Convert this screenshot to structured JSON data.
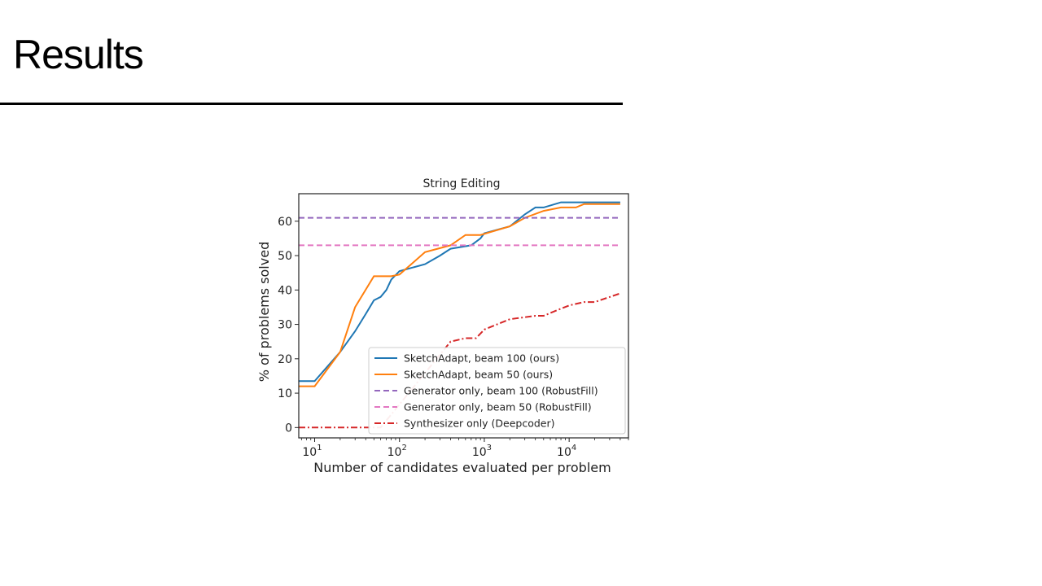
{
  "slide": {
    "title": "Results"
  },
  "chart_data": {
    "type": "line",
    "title": "String Editing",
    "xlabel": "Number of candidates evaluated per problem",
    "ylabel": "% of problems solved",
    "xscale": "log",
    "xlim": [
      6.5,
      50000
    ],
    "ylim": [
      -3,
      68
    ],
    "yticks": [
      0,
      10,
      20,
      30,
      40,
      50,
      60
    ],
    "xticks": [
      {
        "value": 10,
        "base": "10",
        "exp": "1"
      },
      {
        "value": 100,
        "base": "10",
        "exp": "2"
      },
      {
        "value": 1000,
        "base": "10",
        "exp": "3"
      },
      {
        "value": 10000,
        "base": "10",
        "exp": "4"
      }
    ],
    "legend_position": "lower-right",
    "grid": false,
    "series": [
      {
        "name": "SketchAdapt, beam 100 (ours)",
        "color": "#1f77b4",
        "dash": "solid",
        "points": [
          [
            6.5,
            13.5
          ],
          [
            10,
            13.5
          ],
          [
            20,
            22
          ],
          [
            30,
            28
          ],
          [
            40,
            33
          ],
          [
            50,
            37
          ],
          [
            60,
            38
          ],
          [
            70,
            40
          ],
          [
            80,
            43
          ],
          [
            100,
            45.5
          ],
          [
            200,
            47.5
          ],
          [
            300,
            50
          ],
          [
            400,
            52
          ],
          [
            700,
            53
          ],
          [
            900,
            55
          ],
          [
            1000,
            56.5
          ],
          [
            2000,
            58.5
          ],
          [
            3000,
            62
          ],
          [
            4000,
            64
          ],
          [
            5000,
            64
          ],
          [
            8000,
            65.5
          ],
          [
            40000,
            65.5
          ]
        ]
      },
      {
        "name": "SketchAdapt, beam 50 (ours)",
        "color": "#ff7f0e",
        "dash": "solid",
        "points": [
          [
            6.5,
            12
          ],
          [
            10,
            12
          ],
          [
            20,
            22
          ],
          [
            30,
            35
          ],
          [
            50,
            44
          ],
          [
            80,
            44
          ],
          [
            100,
            44.5
          ],
          [
            200,
            51
          ],
          [
            400,
            53
          ],
          [
            600,
            56
          ],
          [
            900,
            56
          ],
          [
            2000,
            58.5
          ],
          [
            3000,
            61
          ],
          [
            5000,
            63
          ],
          [
            8000,
            64
          ],
          [
            12000,
            64
          ],
          [
            15000,
            65
          ],
          [
            40000,
            65
          ]
        ]
      },
      {
        "name": "Generator only, beam 100 (RobustFill)",
        "color": "#9467bd",
        "dash": "dashed",
        "points": [
          [
            6.5,
            61
          ],
          [
            40000,
            61
          ]
        ]
      },
      {
        "name": "Generator only, beam 50 (RobustFill)",
        "color": "#e377c2",
        "dash": "dashed",
        "points": [
          [
            6.5,
            53
          ],
          [
            40000,
            53
          ]
        ]
      },
      {
        "name": "Synthesizer only (Deepcoder)",
        "color": "#d62728",
        "dash": "dashdot",
        "points": [
          [
            6.5,
            0
          ],
          [
            60,
            0
          ],
          [
            400,
            25
          ],
          [
            600,
            26
          ],
          [
            800,
            26
          ],
          [
            1000,
            28.5
          ],
          [
            2000,
            31.5
          ],
          [
            4000,
            32.5
          ],
          [
            5000,
            32.5
          ],
          [
            7000,
            34
          ],
          [
            10000,
            35.5
          ],
          [
            15000,
            36.5
          ],
          [
            20000,
            36.5
          ],
          [
            40000,
            39
          ]
        ]
      }
    ]
  }
}
